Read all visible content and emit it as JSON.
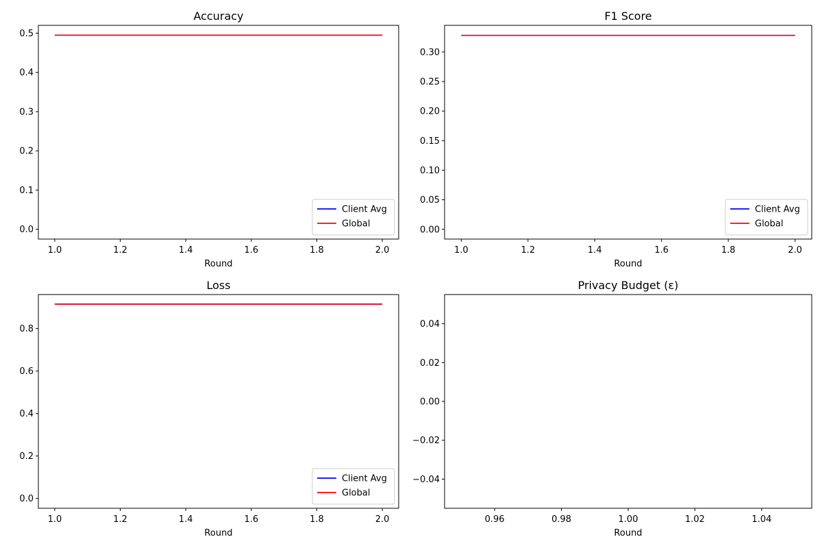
{
  "chart_data": [
    {
      "type": "line",
      "title": "Accuracy",
      "xlabel": "Round",
      "ylabel": "",
      "xlim": [
        0.95,
        2.05
      ],
      "ylim": [
        -0.025,
        0.52
      ],
      "xticks": [
        1.0,
        1.2,
        1.4,
        1.6,
        1.8,
        2.0
      ],
      "xtick_labels": [
        "1.0",
        "1.2",
        "1.4",
        "1.6",
        "1.8",
        "2.0"
      ],
      "yticks": [
        0.0,
        0.1,
        0.2,
        0.3,
        0.4,
        0.5
      ],
      "ytick_labels": [
        "0.0",
        "0.1",
        "0.2",
        "0.3",
        "0.4",
        "0.5"
      ],
      "legend": "lower-right",
      "grid": false,
      "series": [
        {
          "name": "Client Avg",
          "color": "#0000ff",
          "x": [
            1,
            2
          ],
          "y": [
            0.495,
            0.495
          ]
        },
        {
          "name": "Global",
          "color": "#ff0000",
          "x": [
            1,
            2
          ],
          "y": [
            0.495,
            0.495
          ]
        }
      ]
    },
    {
      "type": "line",
      "title": "F1 Score",
      "xlabel": "Round",
      "ylabel": "",
      "xlim": [
        0.95,
        2.05
      ],
      "ylim": [
        -0.0165,
        0.345
      ],
      "xticks": [
        1.0,
        1.2,
        1.4,
        1.6,
        1.8,
        2.0
      ],
      "xtick_labels": [
        "1.0",
        "1.2",
        "1.4",
        "1.6",
        "1.8",
        "2.0"
      ],
      "yticks": [
        0.0,
        0.05,
        0.1,
        0.15,
        0.2,
        0.25,
        0.3
      ],
      "ytick_labels": [
        "0.00",
        "0.05",
        "0.10",
        "0.15",
        "0.20",
        "0.25",
        "0.30"
      ],
      "legend": "lower-right",
      "grid": false,
      "series": [
        {
          "name": "Client Avg",
          "color": "#0000ff",
          "x": [
            1,
            2
          ],
          "y": [
            0.328,
            0.328
          ]
        },
        {
          "name": "Global",
          "color": "#ff0000",
          "x": [
            1,
            2
          ],
          "y": [
            0.328,
            0.328
          ]
        }
      ]
    },
    {
      "type": "line",
      "title": "Loss",
      "xlabel": "Round",
      "ylabel": "",
      "xlim": [
        0.95,
        2.05
      ],
      "ylim": [
        -0.046,
        0.96
      ],
      "xticks": [
        1.0,
        1.2,
        1.4,
        1.6,
        1.8,
        2.0
      ],
      "xtick_labels": [
        "1.0",
        "1.2",
        "1.4",
        "1.6",
        "1.8",
        "2.0"
      ],
      "yticks": [
        0.0,
        0.2,
        0.4,
        0.6,
        0.8
      ],
      "ytick_labels": [
        "0.0",
        "0.2",
        "0.4",
        "0.6",
        "0.8"
      ],
      "legend": "lower-right",
      "grid": false,
      "series": [
        {
          "name": "Client Avg",
          "color": "#0000ff",
          "x": [
            1,
            2
          ],
          "y": [
            0.915,
            0.915
          ]
        },
        {
          "name": "Global",
          "color": "#ff0000",
          "x": [
            1,
            2
          ],
          "y": [
            0.915,
            0.915
          ]
        }
      ]
    },
    {
      "type": "line",
      "title": "Privacy Budget (ε)",
      "xlabel": "Round",
      "ylabel": "",
      "xlim": [
        0.945,
        1.055
      ],
      "ylim": [
        -0.055,
        0.055
      ],
      "xticks": [
        0.96,
        0.98,
        1.0,
        1.02,
        1.04
      ],
      "xtick_labels": [
        "0.96",
        "0.98",
        "1.00",
        "1.02",
        "1.04"
      ],
      "yticks": [
        -0.04,
        -0.02,
        0.0,
        0.02,
        0.04
      ],
      "ytick_labels": [
        "−0.04",
        "−0.02",
        "0.00",
        "0.02",
        "0.04"
      ],
      "legend": "none",
      "grid": false,
      "series": []
    }
  ]
}
